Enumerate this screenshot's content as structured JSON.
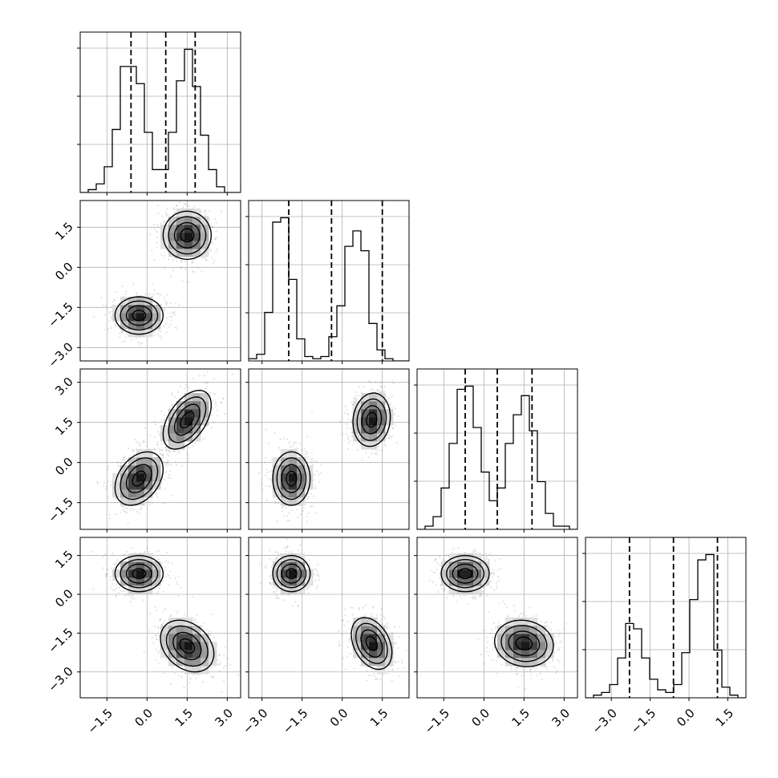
{
  "chart_data": {
    "type": "corner",
    "dimensions": 4,
    "grid": true,
    "axes": [
      {
        "index": 0,
        "range": [
          -2.5,
          3.5
        ],
        "ticks": [
          -1.5,
          0.0,
          1.5,
          3.0
        ],
        "tick_labels": [
          "−1.5",
          "0.0",
          "1.5",
          "3.0"
        ]
      },
      {
        "index": 1,
        "range": [
          -3.5,
          2.5
        ],
        "ticks": [
          -3.0,
          -1.5,
          0.0,
          1.5
        ],
        "tick_labels": [
          "−3.0",
          "−1.5",
          "0.0",
          "1.5"
        ]
      },
      {
        "index": 2,
        "range": [
          -2.5,
          3.5
        ],
        "ticks": [
          -1.5,
          0.0,
          1.5,
          3.0
        ],
        "tick_labels": [
          "−1.5",
          "0.0",
          "1.5",
          "3.0"
        ]
      },
      {
        "index": 3,
        "range": [
          -4.0,
          2.2
        ],
        "ticks": [
          -3.0,
          -1.5,
          0.0,
          1.5
        ],
        "tick_labels": [
          "−3.0",
          "−1.5",
          "0.0",
          "1.5"
        ]
      }
    ],
    "row_tick_labels": [
      {
        "row": 1,
        "ticks": [
          -3.0,
          -1.5,
          0.0,
          1.5
        ],
        "tick_labels": [
          "−3.0",
          "−1.5",
          "0.0",
          "1.5"
        ]
      },
      {
        "row": 2,
        "ticks": [
          -1.5,
          0.0,
          1.5,
          3.0
        ],
        "tick_labels": [
          "−1.5",
          "0.0",
          "1.5",
          "3.0"
        ]
      },
      {
        "row": 3,
        "ticks": [
          -3.0,
          -1.5,
          0.0,
          1.5
        ],
        "tick_labels": [
          "−3.0",
          "−1.5",
          "0.0",
          "1.5"
        ]
      }
    ],
    "histograms": [
      {
        "dim": 0,
        "quantiles": [
          -0.6,
          0.7,
          1.8
        ],
        "bin_edges_range": [
          -2.5,
          3.5
        ],
        "counts": [
          0,
          1,
          3,
          9,
          22,
          44,
          44,
          38,
          21,
          8,
          8,
          21,
          39,
          50,
          37,
          20,
          8,
          2,
          0,
          0
        ]
      },
      {
        "dim": 1,
        "quantiles": [
          -2.0,
          -0.4,
          1.5
        ],
        "bin_edges_range": [
          -3.5,
          2.5
        ],
        "counts": [
          1,
          3,
          22,
          63,
          65,
          37,
          10,
          2,
          1,
          2,
          11,
          25,
          52,
          59,
          50,
          17,
          5,
          1,
          0,
          0
        ]
      },
      {
        "dim": 2,
        "quantiles": [
          -0.7,
          0.5,
          1.8
        ],
        "bin_edges_range": [
          -2.5,
          3.5
        ],
        "counts": [
          0,
          1,
          4,
          13,
          27,
          44,
          45,
          32,
          18,
          9,
          13,
          27,
          36,
          42,
          31,
          15,
          5,
          1,
          1,
          0
        ]
      },
      {
        "dim": 3,
        "quantiles": [
          -2.3,
          -0.6,
          1.1
        ],
        "bin_edges_range": [
          -4.0,
          2.2
        ],
        "counts": [
          0,
          1,
          2,
          5,
          15,
          28,
          26,
          15,
          7,
          3,
          2,
          5,
          17,
          37,
          52,
          54,
          18,
          4,
          1,
          0
        ]
      }
    ],
    "pairs": [
      {
        "x_dim": 0,
        "y_dim": 1,
        "modes": [
          {
            "cx": -0.3,
            "cy": -1.8,
            "sx": 0.45,
            "sy": 0.35,
            "rho": 0.0
          },
          {
            "cx": 1.5,
            "cy": 1.2,
            "sx": 0.45,
            "sy": 0.45,
            "rho": 0.0
          }
        ]
      },
      {
        "x_dim": 0,
        "y_dim": 2,
        "modes": [
          {
            "cx": -0.3,
            "cy": -0.6,
            "sx": 0.45,
            "sy": 0.5,
            "rho": 0.35
          },
          {
            "cx": 1.5,
            "cy": 1.6,
            "sx": 0.45,
            "sy": 0.55,
            "rho": 0.5
          }
        ]
      },
      {
        "x_dim": 1,
        "y_dim": 2,
        "modes": [
          {
            "cx": -1.9,
            "cy": -0.6,
            "sx": 0.35,
            "sy": 0.5,
            "rho": 0.0
          },
          {
            "cx": 1.1,
            "cy": 1.6,
            "sx": 0.35,
            "sy": 0.5,
            "rho": 0.1
          }
        ]
      },
      {
        "x_dim": 0,
        "y_dim": 3,
        "modes": [
          {
            "cx": -0.3,
            "cy": 0.8,
            "sx": 0.45,
            "sy": 0.35,
            "rho": 0.0
          },
          {
            "cx": 1.5,
            "cy": -2.0,
            "sx": 0.5,
            "sy": 0.5,
            "rho": -0.3
          }
        ]
      },
      {
        "x_dim": 1,
        "y_dim": 3,
        "modes": [
          {
            "cx": -1.9,
            "cy": 0.8,
            "sx": 0.35,
            "sy": 0.35,
            "rho": 0.0
          },
          {
            "cx": 1.1,
            "cy": -1.9,
            "sx": 0.38,
            "sy": 0.5,
            "rho": -0.35
          }
        ]
      },
      {
        "x_dim": 2,
        "y_dim": 3,
        "modes": [
          {
            "cx": -0.7,
            "cy": 0.8,
            "sx": 0.45,
            "sy": 0.35,
            "rho": 0.0
          },
          {
            "cx": 1.5,
            "cy": -1.9,
            "sx": 0.55,
            "sy": 0.45,
            "rho": -0.1
          }
        ]
      }
    ]
  }
}
